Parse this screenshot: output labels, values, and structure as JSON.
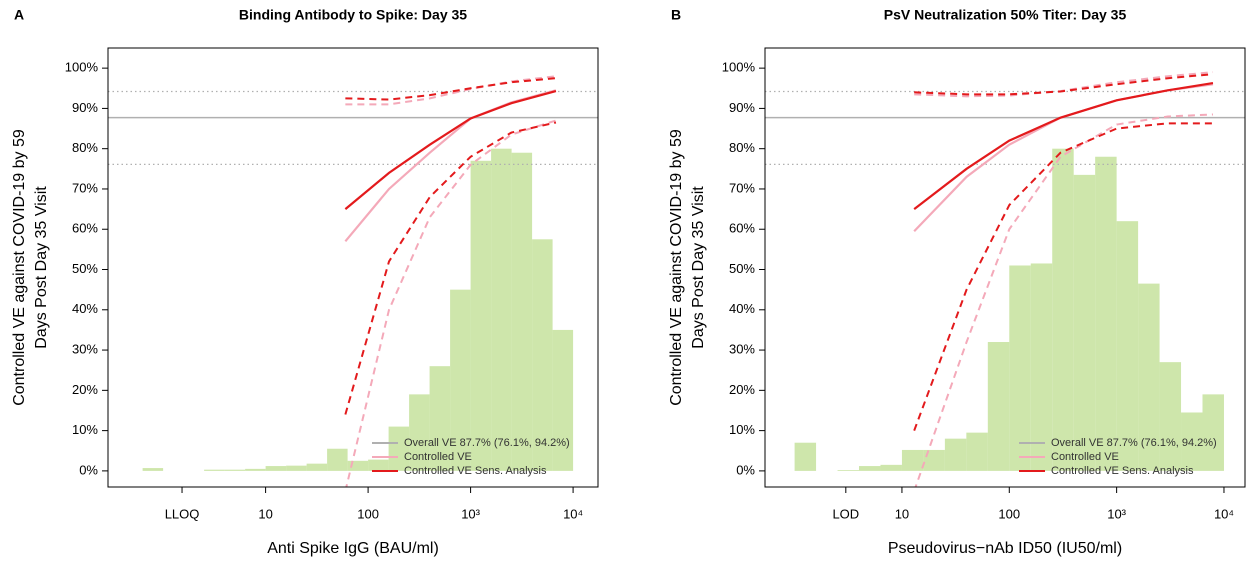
{
  "chart_data": [
    {
      "type": "histogram",
      "panel": "A",
      "title": "Binding Antibody to Spike: Day 35",
      "xlabel": "Anti Spike IgG (BAU/ml)",
      "ylabel": [
        "Controlled VE against COVID-19 by 59",
        "Days Post Day 35 Visit"
      ],
      "log_x": true,
      "xlim": [
        0.29,
        17500
      ],
      "ylim": [
        -4,
        105
      ],
      "xticks": [
        {
          "value": 1.53,
          "label": "LLOQ"
        },
        10,
        100,
        {
          "value": 1000,
          "label": "10³"
        },
        {
          "value": 10000,
          "label": "10⁴"
        }
      ],
      "yticks": [
        {
          "value": 0,
          "label": "0%"
        },
        {
          "value": 10,
          "label": "10%"
        },
        {
          "value": 20,
          "label": "20%"
        },
        {
          "value": 30,
          "label": "30%"
        },
        {
          "value": 40,
          "label": "40%"
        },
        {
          "value": 50,
          "label": "50%"
        },
        {
          "value": 60,
          "label": "60%"
        },
        {
          "value": 70,
          "label": "70%"
        },
        {
          "value": 80,
          "label": "80%"
        },
        {
          "value": 90,
          "label": "90%"
        },
        {
          "value": 100,
          "label": "100%"
        }
      ],
      "bins": [
        0.631,
        1,
        1.585,
        2.512,
        3.981,
        6.31,
        10,
        15.85,
        25.12,
        39.81,
        63.1,
        100,
        158.5,
        251.2,
        398.1,
        631,
        1000,
        1585,
        2512,
        3981,
        6310,
        10000
      ],
      "values": [
        0.7,
        0,
        0,
        0.3,
        0.3,
        0.5,
        1.2,
        1.3,
        1.8,
        5.5,
        2.5,
        2.8,
        11,
        19,
        26,
        45,
        77,
        80,
        79,
        57.5,
        35
      ],
      "color": "#c6e29c",
      "reference": {
        "label": "Overall VE 87.7% (76.1%, 94.2%)",
        "value": 87.7,
        "lower": 76.1,
        "upper": 94.2,
        "color": "#b0b0b0"
      },
      "series": [
        {
          "name": "Controlled VE",
          "color": "#f4a9b9",
          "x": [
            60,
            160,
            400,
            1000,
            2500,
            6800
          ],
          "values": [
            57,
            70,
            79,
            87.5,
            91.5,
            94.5
          ],
          "lower": [
            -5,
            40,
            63,
            76,
            83.5,
            87
          ],
          "upper": [
            91,
            91,
            92.5,
            94.8,
            96.7,
            98
          ]
        },
        {
          "name": "Controlled VE Sens. Analysis",
          "color": "#e31a1c",
          "x": [
            60,
            160,
            400,
            1000,
            2500,
            6800
          ],
          "values": [
            65,
            74,
            81,
            87.5,
            91.3,
            94.3
          ],
          "lower": [
            14,
            52,
            68,
            78,
            84,
            86.5
          ],
          "upper": [
            92.5,
            92.2,
            93.3,
            95,
            96.5,
            97.5
          ]
        }
      ],
      "legend": "bottom right"
    },
    {
      "type": "histogram",
      "panel": "B",
      "title": "PsV Neutralization 50% Titer: Day 35",
      "xlabel": "Pseudovirus−nAb ID50 (IU50/ml)",
      "ylabel": [
        "Controlled VE against COVID-19 by 59",
        "Days Post Day 35 Visit"
      ],
      "log_x": true,
      "xlim": [
        0.53,
        15700
      ],
      "ylim": [
        -4,
        105
      ],
      "xticks": [
        {
          "value": 3,
          "label": "LOD"
        },
        10,
        100,
        {
          "value": 1000,
          "label": "10³"
        },
        {
          "value": 10000,
          "label": "10⁴"
        }
      ],
      "yticks": [
        {
          "value": 0,
          "label": "0%"
        },
        {
          "value": 10,
          "label": "10%"
        },
        {
          "value": 20,
          "label": "20%"
        },
        {
          "value": 30,
          "label": "30%"
        },
        {
          "value": 40,
          "label": "40%"
        },
        {
          "value": 50,
          "label": "50%"
        },
        {
          "value": 60,
          "label": "60%"
        },
        {
          "value": 70,
          "label": "70%"
        },
        {
          "value": 80,
          "label": "80%"
        },
        {
          "value": 90,
          "label": "90%"
        },
        {
          "value": 100,
          "label": "100%"
        }
      ],
      "bins": [
        1,
        1.585,
        2.512,
        3.981,
        6.31,
        10,
        15.85,
        25.12,
        39.81,
        63.1,
        100,
        158.5,
        251.2,
        398.1,
        631,
        1000,
        1585,
        2512,
        3981,
        6310,
        10000
      ],
      "values": [
        7,
        0,
        0.2,
        1.2,
        1.5,
        5.2,
        5.2,
        8,
        9.5,
        32,
        51,
        51.5,
        80,
        73.5,
        78,
        62,
        46.5,
        27,
        14.5,
        19
      ],
      "color": "#c6e29c",
      "reference": {
        "label": "Overall VE 87.7% (76.1%, 94.2%)",
        "value": 87.7,
        "lower": 76.1,
        "upper": 94.2,
        "color": "#b0b0b0"
      },
      "series": [
        {
          "name": "Controlled VE",
          "color": "#f4a9b9",
          "x": [
            13,
            40,
            100,
            300,
            1000,
            3000,
            7900
          ],
          "values": [
            59.5,
            73,
            81,
            87.7,
            92,
            94.5,
            96
          ],
          "lower": [
            -5,
            32,
            60,
            78,
            86,
            88,
            88.5
          ],
          "upper": [
            93.5,
            93,
            93.2,
            94.3,
            96.5,
            98,
            99
          ]
        },
        {
          "name": "Controlled VE Sens. Analysis",
          "color": "#e31a1c",
          "x": [
            13,
            40,
            100,
            300,
            1000,
            3000,
            7900
          ],
          "values": [
            65,
            75,
            82,
            87.7,
            92,
            94.5,
            96.3
          ],
          "lower": [
            10,
            45,
            66,
            79,
            85,
            86.3,
            86.3
          ],
          "upper": [
            94,
            93.5,
            93.5,
            94.2,
            96,
            97.5,
            98.5
          ]
        }
      ],
      "legend": "bottom right"
    }
  ]
}
